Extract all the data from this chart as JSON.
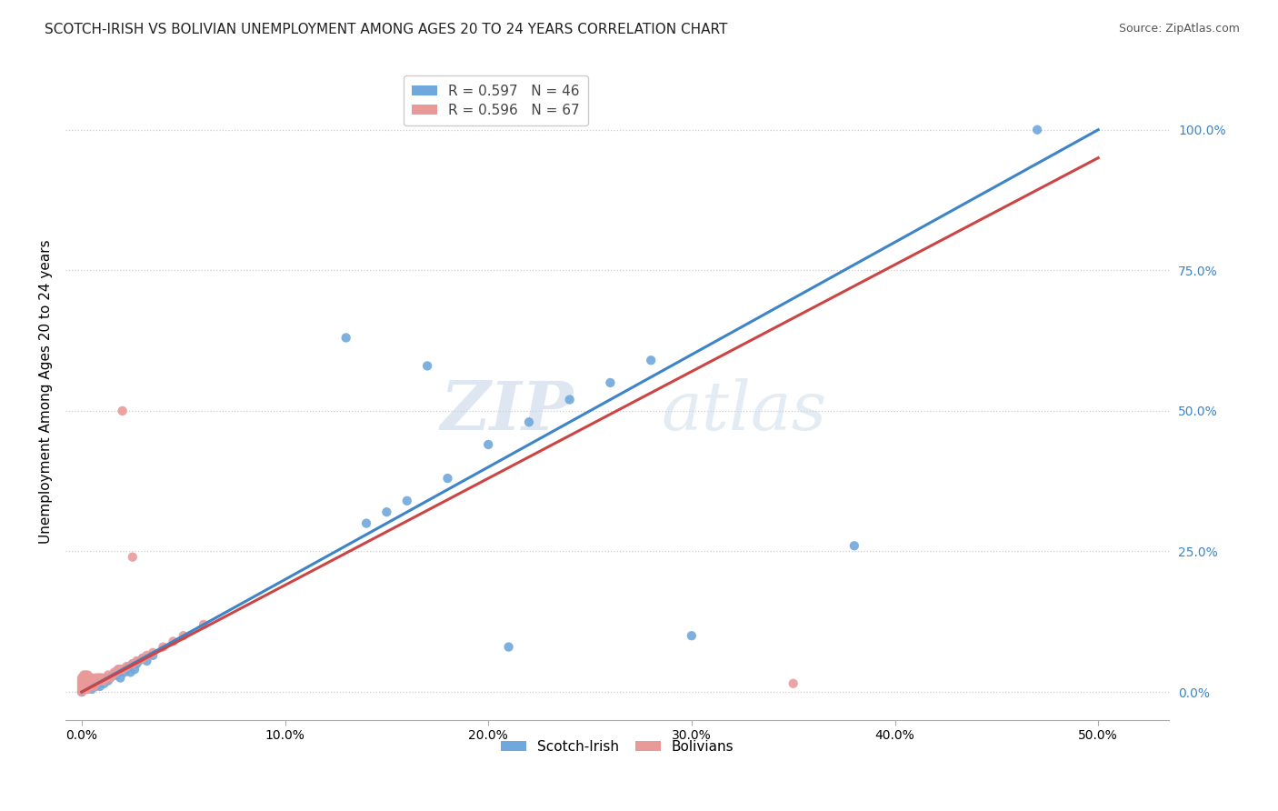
{
  "title": "SCOTCH-IRISH VS BOLIVIAN UNEMPLOYMENT AMONG AGES 20 TO 24 YEARS CORRELATION CHART",
  "source": "Source: ZipAtlas.com",
  "xlabel_ticks": [
    "0.0%",
    "10.0%",
    "20.0%",
    "30.0%",
    "40.0%",
    "50.0%"
  ],
  "xlabel_vals": [
    0.0,
    0.1,
    0.2,
    0.3,
    0.4,
    0.5
  ],
  "ylabel_ticks": [
    "0.0%",
    "25.0%",
    "50.0%",
    "75.0%",
    "100.0%"
  ],
  "ylabel_vals": [
    0.0,
    0.25,
    0.5,
    0.75,
    1.0
  ],
  "ylabel_label": "Unemployment Among Ages 20 to 24 years",
  "xlim": [
    -0.008,
    0.535
  ],
  "ylim": [
    -0.05,
    1.12
  ],
  "scotch_irish_color": "#6fa8dc",
  "bolivian_color": "#ea9999",
  "scotch_irish_R": 0.597,
  "scotch_irish_N": 46,
  "bolivian_R": 0.596,
  "bolivian_N": 67,
  "watermark_zip": "ZIP",
  "watermark_atlas": "atlas",
  "scotch_irish_line_color": "#3d85c8",
  "bolivian_line_color": "#cc4444",
  "diagonal_color": "#ccaaaa",
  "scotch_irish_line": {
    "x0": 0.0,
    "y0": 0.0,
    "x1": 0.5,
    "y1": 1.0
  },
  "bolivian_line": {
    "x0": 0.0,
    "y0": 0.0,
    "x1": 0.5,
    "y1": 0.95
  },
  "scotch_irish_scatter": [
    [
      0.0,
      0.0
    ],
    [
      0.001,
      0.005
    ],
    [
      0.002,
      0.01
    ],
    [
      0.003,
      0.005
    ],
    [
      0.004,
      0.01
    ],
    [
      0.005,
      0.005
    ],
    [
      0.006,
      0.015
    ],
    [
      0.007,
      0.01
    ],
    [
      0.008,
      0.02
    ],
    [
      0.009,
      0.01
    ],
    [
      0.01,
      0.02
    ],
    [
      0.011,
      0.015
    ],
    [
      0.012,
      0.025
    ],
    [
      0.013,
      0.02
    ],
    [
      0.014,
      0.025
    ],
    [
      0.016,
      0.03
    ],
    [
      0.017,
      0.03
    ],
    [
      0.018,
      0.04
    ],
    [
      0.019,
      0.025
    ],
    [
      0.02,
      0.04
    ],
    [
      0.021,
      0.035
    ],
    [
      0.022,
      0.04
    ],
    [
      0.023,
      0.045
    ],
    [
      0.024,
      0.035
    ],
    [
      0.025,
      0.05
    ],
    [
      0.026,
      0.04
    ],
    [
      0.027,
      0.05
    ],
    [
      0.028,
      0.055
    ],
    [
      0.03,
      0.06
    ],
    [
      0.032,
      0.055
    ],
    [
      0.035,
      0.065
    ],
    [
      0.14,
      0.3
    ],
    [
      0.15,
      0.32
    ],
    [
      0.16,
      0.34
    ],
    [
      0.18,
      0.38
    ],
    [
      0.2,
      0.44
    ],
    [
      0.22,
      0.48
    ],
    [
      0.24,
      0.52
    ],
    [
      0.26,
      0.55
    ],
    [
      0.28,
      0.59
    ],
    [
      0.13,
      0.63
    ],
    [
      0.17,
      0.58
    ],
    [
      0.3,
      0.1
    ],
    [
      0.21,
      0.08
    ],
    [
      0.38,
      0.26
    ],
    [
      0.47,
      1.0
    ]
  ],
  "bolivian_scatter": [
    [
      0.0,
      0.0
    ],
    [
      0.0,
      0.005
    ],
    [
      0.0,
      0.01
    ],
    [
      0.0,
      0.015
    ],
    [
      0.0,
      0.02
    ],
    [
      0.0,
      0.025
    ],
    [
      0.001,
      0.005
    ],
    [
      0.001,
      0.01
    ],
    [
      0.001,
      0.015
    ],
    [
      0.001,
      0.02
    ],
    [
      0.001,
      0.025
    ],
    [
      0.001,
      0.03
    ],
    [
      0.002,
      0.005
    ],
    [
      0.002,
      0.01
    ],
    [
      0.002,
      0.015
    ],
    [
      0.002,
      0.02
    ],
    [
      0.002,
      0.025
    ],
    [
      0.002,
      0.03
    ],
    [
      0.003,
      0.005
    ],
    [
      0.003,
      0.01
    ],
    [
      0.003,
      0.015
    ],
    [
      0.003,
      0.02
    ],
    [
      0.003,
      0.025
    ],
    [
      0.003,
      0.03
    ],
    [
      0.004,
      0.01
    ],
    [
      0.004,
      0.015
    ],
    [
      0.004,
      0.02
    ],
    [
      0.004,
      0.025
    ],
    [
      0.005,
      0.01
    ],
    [
      0.005,
      0.015
    ],
    [
      0.005,
      0.02
    ],
    [
      0.005,
      0.025
    ],
    [
      0.006,
      0.01
    ],
    [
      0.006,
      0.015
    ],
    [
      0.006,
      0.02
    ],
    [
      0.007,
      0.015
    ],
    [
      0.007,
      0.02
    ],
    [
      0.007,
      0.025
    ],
    [
      0.008,
      0.02
    ],
    [
      0.008,
      0.025
    ],
    [
      0.009,
      0.02
    ],
    [
      0.009,
      0.025
    ],
    [
      0.01,
      0.02
    ],
    [
      0.01,
      0.025
    ],
    [
      0.011,
      0.02
    ],
    [
      0.012,
      0.025
    ],
    [
      0.013,
      0.03
    ],
    [
      0.014,
      0.025
    ],
    [
      0.015,
      0.03
    ],
    [
      0.016,
      0.035
    ],
    [
      0.017,
      0.035
    ],
    [
      0.018,
      0.04
    ],
    [
      0.019,
      0.04
    ],
    [
      0.02,
      0.04
    ],
    [
      0.02,
      0.5
    ],
    [
      0.022,
      0.045
    ],
    [
      0.025,
      0.05
    ],
    [
      0.027,
      0.055
    ],
    [
      0.03,
      0.06
    ],
    [
      0.032,
      0.065
    ],
    [
      0.035,
      0.07
    ],
    [
      0.04,
      0.08
    ],
    [
      0.045,
      0.09
    ],
    [
      0.05,
      0.1
    ],
    [
      0.06,
      0.12
    ],
    [
      0.025,
      0.24
    ],
    [
      0.35,
      0.015
    ]
  ]
}
